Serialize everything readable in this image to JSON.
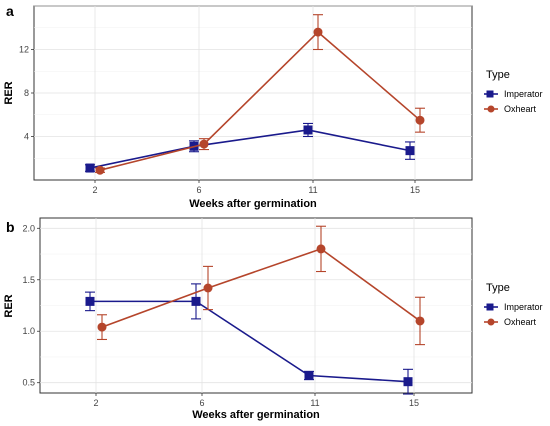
{
  "chart_data": [
    {
      "panel": "a",
      "type": "line",
      "xlabel": "Weeks after germination",
      "ylabel": "RER",
      "categories": [
        "2",
        "6",
        "11",
        "15"
      ],
      "ylim": [
        0,
        16
      ],
      "yticks": [
        "4",
        "8",
        "12"
      ],
      "grid": true,
      "legend": {
        "title": "Type",
        "position": "right"
      },
      "series": [
        {
          "name": "Imperator",
          "color": "#1a1a8c",
          "marker": "square",
          "values": [
            1.1,
            3.1,
            4.6,
            2.7
          ],
          "err": [
            0.3,
            0.5,
            0.6,
            0.8
          ]
        },
        {
          "name": "Oxheart",
          "color": "#b5452b",
          "marker": "circle",
          "values": [
            0.9,
            3.3,
            13.6,
            5.5
          ],
          "err": [
            0.2,
            0.5,
            1.6,
            1.1
          ]
        }
      ]
    },
    {
      "panel": "b",
      "type": "line",
      "xlabel": "Weeks after germination",
      "ylabel": "RER",
      "categories": [
        "2",
        "6",
        "11",
        "15"
      ],
      "ylim": [
        0.4,
        2.1
      ],
      "yticks": [
        "0.5",
        "1.0",
        "1.5",
        "2.0"
      ],
      "grid": true,
      "legend": {
        "title": "Type",
        "position": "right"
      },
      "series": [
        {
          "name": "Imperator",
          "color": "#1a1a8c",
          "marker": "square",
          "values": [
            1.29,
            1.29,
            0.57,
            0.51
          ],
          "err": [
            0.09,
            0.17,
            0.04,
            0.12
          ]
        },
        {
          "name": "Oxheart",
          "color": "#b5452b",
          "marker": "circle",
          "values": [
            1.04,
            1.42,
            1.8,
            1.1
          ],
          "err": [
            0.12,
            0.21,
            0.22,
            0.23
          ]
        }
      ]
    }
  ]
}
